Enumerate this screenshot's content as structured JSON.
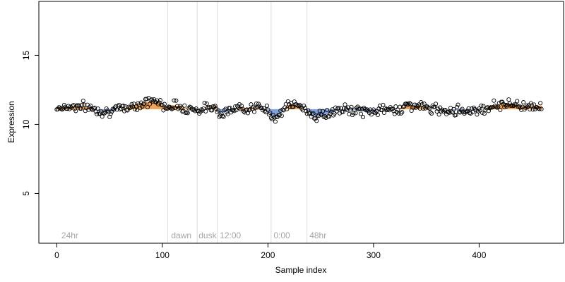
{
  "chart_data": {
    "type": "scatter",
    "title": "",
    "xlabel": "Sample index",
    "ylabel": "Expression",
    "xlim": [
      -17,
      480
    ],
    "ylim": [
      1.4,
      18.9
    ],
    "x_ticks": [
      0,
      100,
      200,
      300,
      400
    ],
    "x_tick_labels": [
      "0",
      "100",
      "200",
      "300",
      "400"
    ],
    "y_ticks": [
      5,
      10,
      15
    ],
    "y_tick_labels": [
      "5",
      "10",
      "15"
    ],
    "baseline": 11.1,
    "grid": false,
    "vlines": [
      105,
      133,
      152,
      203,
      237
    ],
    "annotations": [
      {
        "label": "24hr",
        "x": 3
      },
      {
        "label": "dawn",
        "x": 107
      },
      {
        "label": "dusk",
        "x": 133
      },
      {
        "label": "12:00",
        "x": 153
      },
      {
        "label": "0:00",
        "x": 204
      },
      {
        "label": "48hr",
        "x": 238
      }
    ],
    "colors": {
      "above": "#f0a050",
      "below": "#7f9fdc",
      "point_fill": "#ffffff",
      "point_stroke": "#000000",
      "vline": "#dddddd",
      "annotation": "#a6a6a6"
    },
    "n_points": 460,
    "anchors": [
      [
        0,
        11.2
      ],
      [
        15,
        11.3
      ],
      [
        30,
        11.25
      ],
      [
        40,
        11.0
      ],
      [
        50,
        10.95
      ],
      [
        58,
        11.05
      ],
      [
        70,
        11.3
      ],
      [
        80,
        11.5
      ],
      [
        90,
        11.7
      ],
      [
        97,
        11.6
      ],
      [
        102,
        11.25
      ],
      [
        110,
        11.4
      ],
      [
        120,
        11.2
      ],
      [
        135,
        11.05
      ],
      [
        150,
        11.3
      ],
      [
        155,
        10.8
      ],
      [
        165,
        11.0
      ],
      [
        175,
        11.2
      ],
      [
        190,
        11.2
      ],
      [
        200,
        11.0
      ],
      [
        205,
        10.5
      ],
      [
        210,
        10.7
      ],
      [
        215,
        11.1
      ],
      [
        222,
        11.45
      ],
      [
        230,
        11.3
      ],
      [
        237,
        11.0
      ],
      [
        245,
        10.6
      ],
      [
        255,
        10.7
      ],
      [
        265,
        11.0
      ],
      [
        280,
        11.05
      ],
      [
        295,
        10.9
      ],
      [
        305,
        11.05
      ],
      [
        320,
        11.05
      ],
      [
        335,
        11.4
      ],
      [
        345,
        11.3
      ],
      [
        355,
        11.1
      ],
      [
        370,
        11.05
      ],
      [
        385,
        11.0
      ],
      [
        400,
        11.05
      ],
      [
        412,
        11.3
      ],
      [
        425,
        11.5
      ],
      [
        440,
        11.35
      ],
      [
        450,
        11.3
      ],
      [
        459,
        11.35
      ]
    ],
    "noise_amplitude": 0.25
  }
}
